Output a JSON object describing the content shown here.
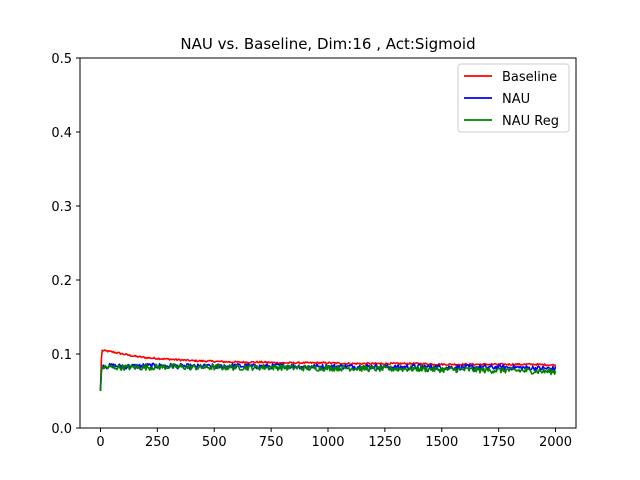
{
  "chart_data": {
    "type": "line",
    "title": "NAU vs. Baseline, Dim:16 , Act:Sigmoid",
    "xlabel": "",
    "ylabel": "",
    "xlim": [
      -90,
      2090
    ],
    "ylim": [
      0.0,
      0.5
    ],
    "x_ticks": [
      0,
      250,
      500,
      750,
      1000,
      1250,
      1500,
      1750,
      2000
    ],
    "y_ticks": [
      0.0,
      0.1,
      0.2,
      0.3,
      0.4,
      0.5
    ],
    "x_tick_labels": [
      "0",
      "250",
      "500",
      "750",
      "1000",
      "1250",
      "1500",
      "1750",
      "2000"
    ],
    "y_tick_labels": [
      "0.0",
      "0.1",
      "0.2",
      "0.3",
      "0.4",
      "0.5"
    ],
    "grid": false,
    "legend_position": "top-right",
    "series": [
      {
        "name": "Baseline",
        "color": "#ff0000",
        "x": [
          0,
          5,
          25,
          50,
          100,
          150,
          200,
          300,
          400,
          500,
          600,
          700,
          800,
          900,
          1000,
          1100,
          1200,
          1300,
          1400,
          1500,
          1600,
          1700,
          1800,
          1900,
          2000
        ],
        "y": [
          0.052,
          0.105,
          0.104,
          0.103,
          0.1,
          0.097,
          0.095,
          0.093,
          0.091,
          0.09,
          0.089,
          0.089,
          0.088,
          0.088,
          0.088,
          0.087,
          0.087,
          0.087,
          0.087,
          0.086,
          0.086,
          0.086,
          0.086,
          0.086,
          0.085
        ]
      },
      {
        "name": "NAU",
        "color": "#0000ff",
        "x": [
          0,
          5,
          25,
          50,
          100,
          200,
          300,
          400,
          500,
          600,
          700,
          800,
          900,
          1000,
          1100,
          1200,
          1300,
          1400,
          1500,
          1600,
          1700,
          1800,
          1900,
          2000
        ],
        "y": [
          0.05,
          0.085,
          0.083,
          0.084,
          0.083,
          0.084,
          0.084,
          0.083,
          0.083,
          0.084,
          0.083,
          0.084,
          0.083,
          0.083,
          0.083,
          0.083,
          0.082,
          0.083,
          0.082,
          0.082,
          0.082,
          0.082,
          0.081,
          0.08
        ]
      },
      {
        "name": "NAU Reg",
        "color": "#008000",
        "x": [
          0,
          5,
          25,
          50,
          100,
          200,
          300,
          400,
          500,
          600,
          700,
          800,
          900,
          1000,
          1100,
          1200,
          1300,
          1400,
          1500,
          1600,
          1700,
          1800,
          1900,
          2000
        ],
        "y": [
          0.05,
          0.083,
          0.082,
          0.082,
          0.082,
          0.082,
          0.083,
          0.082,
          0.082,
          0.082,
          0.082,
          0.082,
          0.081,
          0.081,
          0.081,
          0.08,
          0.08,
          0.08,
          0.079,
          0.079,
          0.078,
          0.078,
          0.077,
          0.076
        ]
      }
    ]
  }
}
